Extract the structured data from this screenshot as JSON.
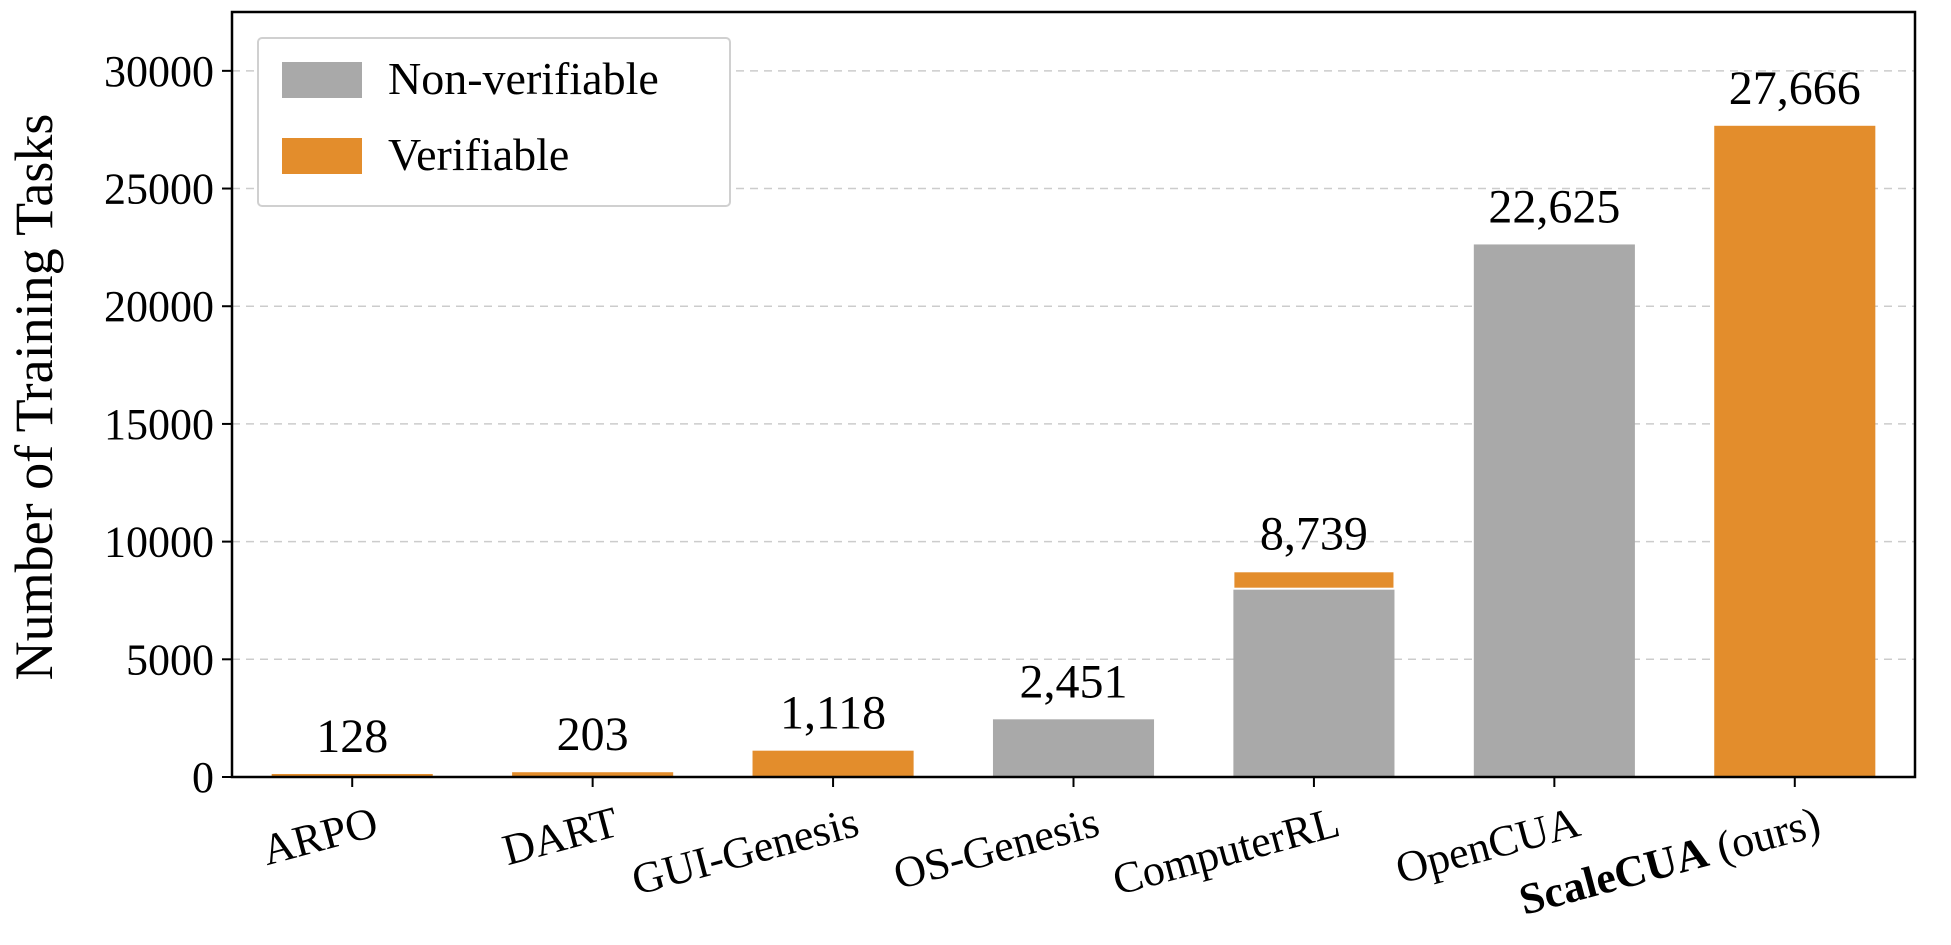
{
  "chart_data": {
    "type": "bar",
    "stacked": true,
    "ylabel": "Number of Training Tasks",
    "xlabel": "",
    "ylim": [
      0,
      32500
    ],
    "yticks": [
      0,
      5000,
      10000,
      15000,
      20000,
      25000,
      30000
    ],
    "ytick_labels": [
      "0",
      "5000",
      "10000",
      "15000",
      "20000",
      "25000",
      "30000"
    ],
    "grid": "horizontal dashed",
    "legend_position": "top-left",
    "categories": [
      {
        "label": "ARPO",
        "suffix": ""
      },
      {
        "label": "DART",
        "suffix": ""
      },
      {
        "label": "GUI-Genesis",
        "suffix": ""
      },
      {
        "label": "OS-Genesis",
        "suffix": ""
      },
      {
        "label": "ComputerRL",
        "suffix": ""
      },
      {
        "label": "OpenCUA",
        "suffix": ""
      },
      {
        "label": "ScaleCUA",
        "suffix": " (ours)"
      }
    ],
    "series": [
      {
        "name": "Non-verifiable",
        "color": "#a9a9a9",
        "values": [
          0,
          0,
          0,
          2451,
          8000,
          22625,
          0
        ]
      },
      {
        "name": "Verifiable",
        "color": "#e38d2c",
        "values": [
          128,
          203,
          1118,
          0,
          739,
          0,
          27666
        ]
      }
    ],
    "totals": [
      128,
      203,
      1118,
      2451,
      8739,
      22625,
      27666
    ],
    "total_labels": [
      "128",
      "203",
      "1,118",
      "2,451",
      "8,739",
      "22,625",
      "27,666"
    ],
    "colors": {
      "non_verifiable": "#a9a9a9",
      "verifiable": "#e38d2c",
      "grid": "#cccccc",
      "axis": "#000000"
    }
  }
}
